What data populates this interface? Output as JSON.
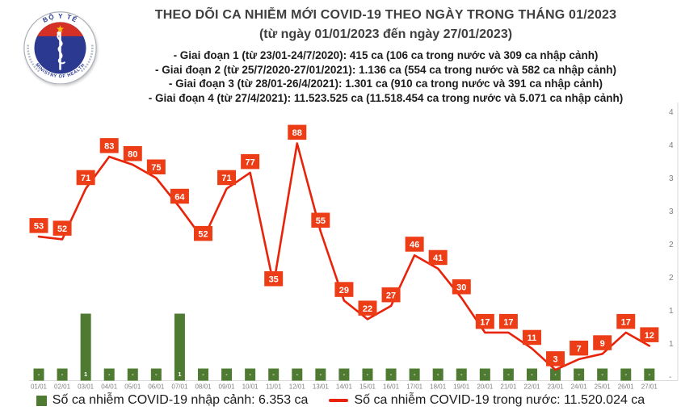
{
  "header": {
    "title": "THEO DÕI CA NHIỄM MỚI COVID-19 THEO NGÀY TRONG THÁNG 01/2023",
    "subtitle": "(từ ngày 01/01/2023 đến ngày 27/01/2023)",
    "phases": [
      "- Giai đoạn 1 (từ 23/01-24/7/2020): 415 ca (106 ca trong nước và 309 ca nhập cảnh)",
      "- Giai đoạn 2 (từ 25/7/2020-27/01/2021): 1.136 ca (554 ca trong nước và 582 ca nhập cảnh)",
      "- Giai đoạn 3 (từ 28/01-26/4/2021): 1.301 ca (910 ca trong nước và 391 ca nhập cảnh)",
      "- Giai đoạn 4 (từ 27/4/2021): 11.523.525 ca (11.518.454 ca trong nước và 5.071 ca nhập cảnh)"
    ],
    "logo": {
      "top_text": "BỘ Y TẾ",
      "bottom_text": "MINISTRY OF HEALTH"
    }
  },
  "chart_data": {
    "type": "line+bar",
    "title": "THEO DÕI CA NHIỄM MỚI COVID-19 THEO NGÀY TRONG THÁNG 01/2023",
    "categories": [
      "01/01",
      "02/01",
      "03/01",
      "04/01",
      "05/01",
      "06/01",
      "07/01",
      "08/01",
      "09/01",
      "10/01",
      "11/01",
      "12/01",
      "13/01",
      "14/01",
      "15/01",
      "16/01",
      "17/01",
      "18/01",
      "19/01",
      "20/01",
      "21/01",
      "22/01",
      "23/01",
      "24/01",
      "25/01",
      "26/01",
      "27/01"
    ],
    "series": [
      {
        "name": "Số ca nhiễm COVID-19 trong nước",
        "type": "line",
        "color": "#e8230a",
        "label_box_color": "#ec3d17",
        "values": [
          53,
          52,
          71,
          83,
          80,
          75,
          64,
          52,
          71,
          77,
          35,
          88,
          55,
          29,
          22,
          27,
          46,
          41,
          30,
          17,
          17,
          11,
          3,
          7,
          9,
          17,
          12
        ]
      },
      {
        "name": "Số ca nhiễm COVID-19 nhập cảnh",
        "type": "bar",
        "color": "#4e7b31",
        "values": [
          0,
          0,
          1,
          0,
          0,
          0,
          1,
          0,
          0,
          0,
          0,
          0,
          0,
          0,
          0,
          0,
          0,
          0,
          0,
          0,
          0,
          0,
          0,
          0,
          0,
          0,
          0
        ],
        "display_labels": [
          "-",
          "-",
          "1",
          "-",
          "-",
          "-",
          "1",
          "-",
          "-",
          "-",
          "-",
          "-",
          "-",
          "-",
          "-",
          "-",
          "-",
          "-",
          "-",
          "-",
          "-",
          "-",
          "-",
          "-",
          "-",
          "-",
          "-"
        ]
      }
    ],
    "right_axis_labels": [
      "4",
      "4",
      "3",
      "3",
      "2",
      "2",
      "1",
      "1",
      "-"
    ],
    "legend_position": "bottom",
    "grid": false
  },
  "legend": {
    "bar_label": "Số ca nhiễm COVID-19 nhập cảnh: 6.353 ca",
    "line_label": "Số ca nhiễm COVID-19 trong nước: 11.520.024 ca"
  },
  "colors": {
    "line": "#e8230a",
    "label_box": "#ec3d17",
    "bar": "#4e7b31",
    "axis": "#d9d9d9",
    "tick_text": "#7f7f7f",
    "title_text": "#3f3f3f",
    "logo_navy": "#2b3990",
    "logo_red": "#d43026",
    "logo_star": "#ffc20e"
  }
}
